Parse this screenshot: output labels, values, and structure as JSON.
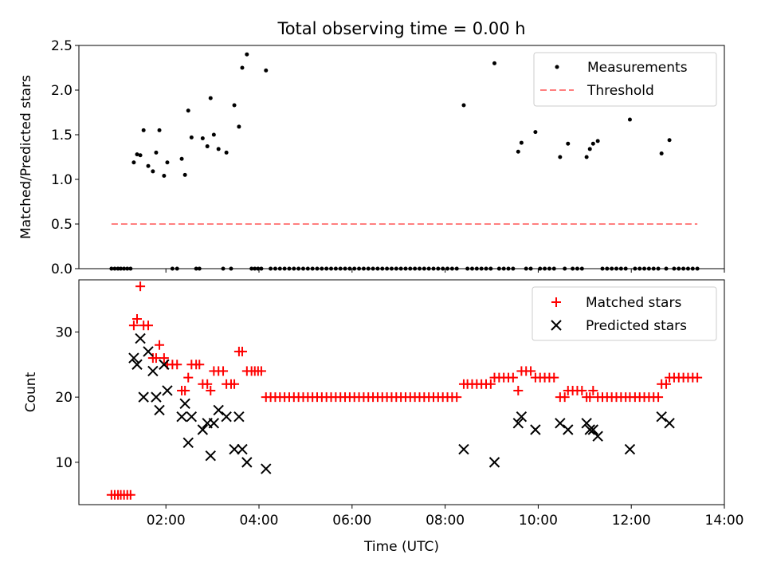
{
  "chart_data": {
    "type": "scatter",
    "title": "Total observing time = 0.00 h",
    "xlabel": "Time (UTC)",
    "xlim_hours": [
      0.13,
      14.0
    ],
    "x_ticks": [
      "02:00",
      "04:00",
      "06:00",
      "08:00",
      "10:00",
      "12:00",
      "14:00"
    ],
    "colors": {
      "measurement": "#000000",
      "threshold": "#ff7f7f",
      "matched": "#ff0000",
      "predicted": "#000000"
    },
    "top_panel": {
      "ylabel": "Matched/Predicted stars",
      "ylim": [
        0,
        2.5
      ],
      "y_ticks": [
        "0.0",
        "0.5",
        "1.0",
        "1.5",
        "2.0",
        "2.5"
      ],
      "legend": [
        "Measurements",
        "Threshold"
      ],
      "threshold": {
        "value": 0.5,
        "x_start": 0.83,
        "x_end": 13.42
      },
      "measurements": [
        [
          0.83,
          0
        ],
        [
          0.9,
          0
        ],
        [
          0.97,
          0
        ],
        [
          1.03,
          0
        ],
        [
          1.1,
          0
        ],
        [
          1.17,
          0
        ],
        [
          1.24,
          0
        ],
        [
          1.31,
          1.19
        ],
        [
          1.38,
          1.28
        ],
        [
          1.45,
          1.27
        ],
        [
          1.52,
          1.55
        ],
        [
          1.62,
          1.15
        ],
        [
          1.72,
          1.09
        ],
        [
          1.79,
          1.3
        ],
        [
          1.86,
          1.55
        ],
        [
          1.96,
          1.04
        ],
        [
          2.03,
          1.19
        ],
        [
          2.14,
          0
        ],
        [
          2.24,
          0
        ],
        [
          2.34,
          1.23
        ],
        [
          2.41,
          1.05
        ],
        [
          2.48,
          1.77
        ],
        [
          2.55,
          1.47
        ],
        [
          2.65,
          0
        ],
        [
          2.72,
          0
        ],
        [
          2.79,
          1.46
        ],
        [
          2.89,
          1.37
        ],
        [
          2.96,
          1.91
        ],
        [
          3.03,
          1.5
        ],
        [
          3.13,
          1.34
        ],
        [
          3.23,
          0
        ],
        [
          3.3,
          1.3
        ],
        [
          3.4,
          0
        ],
        [
          3.47,
          1.83
        ],
        [
          3.57,
          1.59
        ],
        [
          3.64,
          2.25
        ],
        [
          3.74,
          2.4
        ],
        [
          3.84,
          0
        ],
        [
          3.91,
          0
        ],
        [
          3.98,
          0
        ],
        [
          4.05,
          0
        ],
        [
          4.15,
          2.22
        ],
        [
          4.25,
          0
        ],
        [
          4.35,
          0
        ],
        [
          4.45,
          0
        ],
        [
          4.55,
          0
        ],
        [
          4.65,
          0
        ],
        [
          4.75,
          0
        ],
        [
          4.85,
          0
        ],
        [
          4.95,
          0
        ],
        [
          5.05,
          0
        ],
        [
          5.15,
          0
        ],
        [
          5.25,
          0
        ],
        [
          5.35,
          0
        ],
        [
          5.45,
          0
        ],
        [
          5.55,
          0
        ],
        [
          5.65,
          0
        ],
        [
          5.75,
          0
        ],
        [
          5.85,
          0
        ],
        [
          5.95,
          0
        ],
        [
          6.05,
          0
        ],
        [
          6.15,
          0
        ],
        [
          6.25,
          0
        ],
        [
          6.35,
          0
        ],
        [
          6.45,
          0
        ],
        [
          6.55,
          0
        ],
        [
          6.65,
          0
        ],
        [
          6.75,
          0
        ],
        [
          6.85,
          0
        ],
        [
          6.95,
          0
        ],
        [
          7.05,
          0
        ],
        [
          7.15,
          0
        ],
        [
          7.25,
          0
        ],
        [
          7.35,
          0
        ],
        [
          7.45,
          0
        ],
        [
          7.55,
          0
        ],
        [
          7.65,
          0
        ],
        [
          7.75,
          0
        ],
        [
          7.85,
          0
        ],
        [
          7.95,
          0
        ],
        [
          8.05,
          0
        ],
        [
          8.15,
          0
        ],
        [
          8.25,
          0
        ],
        [
          8.4,
          1.83
        ],
        [
          8.48,
          0
        ],
        [
          8.58,
          0
        ],
        [
          8.68,
          0
        ],
        [
          8.78,
          0
        ],
        [
          8.88,
          0
        ],
        [
          8.98,
          0
        ],
        [
          9.06,
          2.3
        ],
        [
          9.16,
          0
        ],
        [
          9.26,
          0
        ],
        [
          9.36,
          0
        ],
        [
          9.46,
          0
        ],
        [
          9.57,
          1.31
        ],
        [
          9.64,
          1.41
        ],
        [
          9.74,
          0
        ],
        [
          9.84,
          0
        ],
        [
          9.94,
          1.53
        ],
        [
          10.04,
          0
        ],
        [
          10.14,
          0
        ],
        [
          10.24,
          0
        ],
        [
          10.34,
          0
        ],
        [
          10.47,
          1.25
        ],
        [
          10.57,
          0
        ],
        [
          10.64,
          1.4
        ],
        [
          10.74,
          0
        ],
        [
          10.84,
          0
        ],
        [
          10.94,
          0
        ],
        [
          11.04,
          1.25
        ],
        [
          11.11,
          1.34
        ],
        [
          11.18,
          1.4
        ],
        [
          11.28,
          1.43
        ],
        [
          11.38,
          0
        ],
        [
          11.48,
          0
        ],
        [
          11.58,
          0
        ],
        [
          11.68,
          0
        ],
        [
          11.78,
          0
        ],
        [
          11.88,
          0
        ],
        [
          11.97,
          1.67
        ],
        [
          12.08,
          0
        ],
        [
          12.18,
          0
        ],
        [
          12.28,
          0
        ],
        [
          12.38,
          0
        ],
        [
          12.48,
          0
        ],
        [
          12.58,
          0
        ],
        [
          12.65,
          1.29
        ],
        [
          12.75,
          0
        ],
        [
          12.82,
          1.44
        ],
        [
          12.92,
          0
        ],
        [
          13.02,
          0
        ],
        [
          13.12,
          0
        ],
        [
          13.22,
          0
        ],
        [
          13.32,
          0
        ],
        [
          13.42,
          0
        ]
      ]
    },
    "bottom_panel": {
      "ylabel": "Count",
      "ylim": [
        3.5,
        38
      ],
      "y_ticks": [
        "10",
        "20",
        "30"
      ],
      "legend": [
        "Matched stars",
        "Predicted stars"
      ],
      "matched": [
        [
          0.83,
          5
        ],
        [
          0.9,
          5
        ],
        [
          0.97,
          5
        ],
        [
          1.03,
          5
        ],
        [
          1.1,
          5
        ],
        [
          1.17,
          5
        ],
        [
          1.24,
          5
        ],
        [
          1.31,
          31
        ],
        [
          1.38,
          32
        ],
        [
          1.45,
          37
        ],
        [
          1.52,
          31
        ],
        [
          1.62,
          31
        ],
        [
          1.72,
          26
        ],
        [
          1.79,
          26
        ],
        [
          1.86,
          28
        ],
        [
          1.96,
          26
        ],
        [
          2.03,
          25
        ],
        [
          2.14,
          25
        ],
        [
          2.24,
          25
        ],
        [
          2.34,
          21
        ],
        [
          2.41,
          21
        ],
        [
          2.48,
          23
        ],
        [
          2.55,
          25
        ],
        [
          2.65,
          25
        ],
        [
          2.72,
          25
        ],
        [
          2.79,
          22
        ],
        [
          2.89,
          22
        ],
        [
          2.96,
          21
        ],
        [
          3.03,
          24
        ],
        [
          3.13,
          24
        ],
        [
          3.23,
          24
        ],
        [
          3.3,
          22
        ],
        [
          3.4,
          22
        ],
        [
          3.47,
          22
        ],
        [
          3.57,
          27
        ],
        [
          3.64,
          27
        ],
        [
          3.74,
          24
        ],
        [
          3.84,
          24
        ],
        [
          3.91,
          24
        ],
        [
          3.98,
          24
        ],
        [
          4.05,
          24
        ],
        [
          4.15,
          20
        ],
        [
          4.25,
          20
        ],
        [
          4.35,
          20
        ],
        [
          4.45,
          20
        ],
        [
          4.55,
          20
        ],
        [
          4.65,
          20
        ],
        [
          4.75,
          20
        ],
        [
          4.85,
          20
        ],
        [
          4.95,
          20
        ],
        [
          5.05,
          20
        ],
        [
          5.15,
          20
        ],
        [
          5.25,
          20
        ],
        [
          5.35,
          20
        ],
        [
          5.45,
          20
        ],
        [
          5.55,
          20
        ],
        [
          5.65,
          20
        ],
        [
          5.75,
          20
        ],
        [
          5.85,
          20
        ],
        [
          5.95,
          20
        ],
        [
          6.05,
          20
        ],
        [
          6.15,
          20
        ],
        [
          6.25,
          20
        ],
        [
          6.35,
          20
        ],
        [
          6.45,
          20
        ],
        [
          6.55,
          20
        ],
        [
          6.65,
          20
        ],
        [
          6.75,
          20
        ],
        [
          6.85,
          20
        ],
        [
          6.95,
          20
        ],
        [
          7.05,
          20
        ],
        [
          7.15,
          20
        ],
        [
          7.25,
          20
        ],
        [
          7.35,
          20
        ],
        [
          7.45,
          20
        ],
        [
          7.55,
          20
        ],
        [
          7.65,
          20
        ],
        [
          7.75,
          20
        ],
        [
          7.85,
          20
        ],
        [
          7.95,
          20
        ],
        [
          8.05,
          20
        ],
        [
          8.15,
          20
        ],
        [
          8.25,
          20
        ],
        [
          8.4,
          22
        ],
        [
          8.48,
          22
        ],
        [
          8.58,
          22
        ],
        [
          8.68,
          22
        ],
        [
          8.78,
          22
        ],
        [
          8.88,
          22
        ],
        [
          8.98,
          22
        ],
        [
          9.06,
          23
        ],
        [
          9.16,
          23
        ],
        [
          9.26,
          23
        ],
        [
          9.36,
          23
        ],
        [
          9.46,
          23
        ],
        [
          9.57,
          21
        ],
        [
          9.64,
          24
        ],
        [
          9.74,
          24
        ],
        [
          9.84,
          24
        ],
        [
          9.94,
          23
        ],
        [
          10.04,
          23
        ],
        [
          10.14,
          23
        ],
        [
          10.24,
          23
        ],
        [
          10.34,
          23
        ],
        [
          10.47,
          20
        ],
        [
          10.57,
          20
        ],
        [
          10.64,
          21
        ],
        [
          10.74,
          21
        ],
        [
          10.84,
          21
        ],
        [
          10.94,
          21
        ],
        [
          11.04,
          20
        ],
        [
          11.11,
          20
        ],
        [
          11.18,
          21
        ],
        [
          11.28,
          20
        ],
        [
          11.38,
          20
        ],
        [
          11.48,
          20
        ],
        [
          11.58,
          20
        ],
        [
          11.68,
          20
        ],
        [
          11.78,
          20
        ],
        [
          11.88,
          20
        ],
        [
          11.97,
          20
        ],
        [
          12.08,
          20
        ],
        [
          12.18,
          20
        ],
        [
          12.28,
          20
        ],
        [
          12.38,
          20
        ],
        [
          12.48,
          20
        ],
        [
          12.58,
          20
        ],
        [
          12.65,
          22
        ],
        [
          12.75,
          22
        ],
        [
          12.82,
          23
        ],
        [
          12.92,
          23
        ],
        [
          13.02,
          23
        ],
        [
          13.12,
          23
        ],
        [
          13.22,
          23
        ],
        [
          13.32,
          23
        ],
        [
          13.42,
          23
        ]
      ],
      "predicted": [
        [
          1.31,
          26
        ],
        [
          1.38,
          25
        ],
        [
          1.45,
          29
        ],
        [
          1.52,
          20
        ],
        [
          1.62,
          27
        ],
        [
          1.72,
          24
        ],
        [
          1.79,
          20
        ],
        [
          1.86,
          18
        ],
        [
          1.96,
          25
        ],
        [
          2.03,
          21
        ],
        [
          2.34,
          17
        ],
        [
          2.41,
          19
        ],
        [
          2.48,
          13
        ],
        [
          2.55,
          17
        ],
        [
          2.79,
          15
        ],
        [
          2.89,
          16
        ],
        [
          2.96,
          11
        ],
        [
          3.03,
          16
        ],
        [
          3.13,
          18
        ],
        [
          3.3,
          17
        ],
        [
          3.47,
          12
        ],
        [
          3.57,
          17
        ],
        [
          3.64,
          12
        ],
        [
          3.74,
          10
        ],
        [
          4.15,
          9
        ],
        [
          8.4,
          12
        ],
        [
          9.06,
          10
        ],
        [
          9.57,
          16
        ],
        [
          9.64,
          17
        ],
        [
          9.94,
          15
        ],
        [
          10.47,
          16
        ],
        [
          10.64,
          15
        ],
        [
          11.04,
          16
        ],
        [
          11.11,
          15
        ],
        [
          11.18,
          15
        ],
        [
          11.28,
          14
        ],
        [
          11.97,
          12
        ],
        [
          12.65,
          17
        ],
        [
          12.82,
          16
        ]
      ]
    }
  }
}
